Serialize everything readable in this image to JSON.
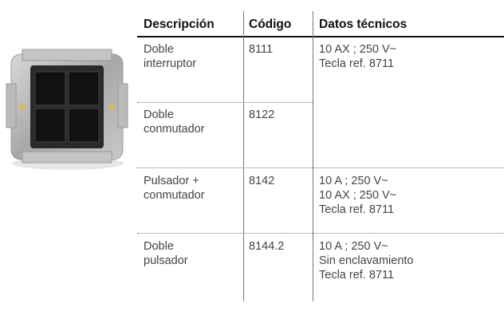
{
  "table": {
    "headers": [
      "Descripción",
      "Código",
      "Datos técnicos"
    ],
    "rows": [
      {
        "description": [
          "Doble",
          "interruptor"
        ],
        "code": "8111",
        "specs": [
          "10 AX ; 250 V~",
          "Tecla ref. 8711"
        ]
      },
      {
        "description": [
          "Doble",
          "conmutador"
        ],
        "code": "8122",
        "specs": []
      },
      {
        "description": [
          "Pulsador +",
          "conmutador"
        ],
        "code": "8142",
        "specs": [
          "10 A ; 250 V~",
          "10 AX ; 250 V~",
          "Tecla ref. 8711"
        ]
      },
      {
        "description": [
          "Doble",
          "pulsador"
        ],
        "code": "8144.2",
        "specs": [
          "10 A ; 250 V~",
          "Sin enclavamiento",
          "Tecla ref. 8711"
        ]
      }
    ]
  }
}
